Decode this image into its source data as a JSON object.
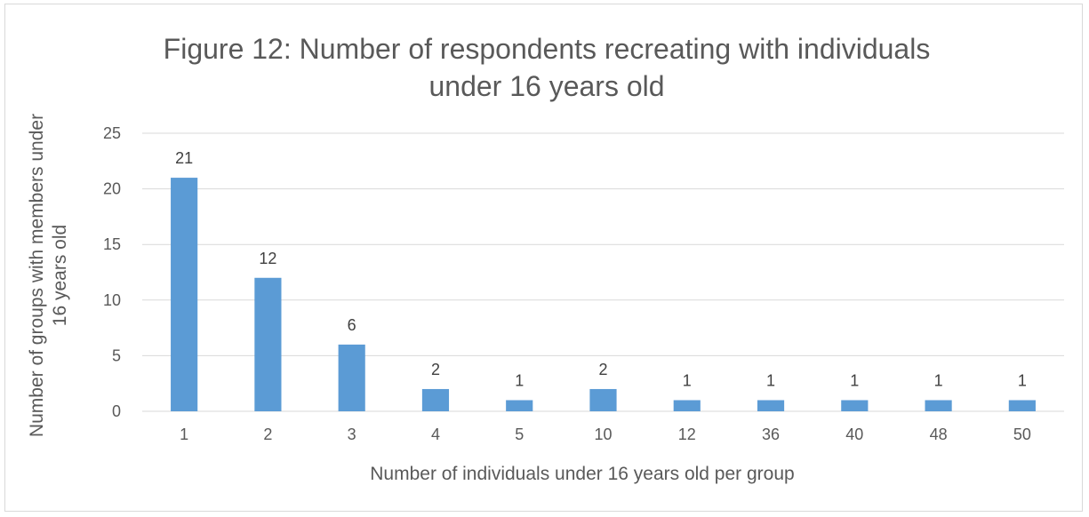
{
  "chart_data": {
    "type": "bar",
    "title_lines": [
      "Figure 12: Number of respondents recreating with individuals",
      "under 16 years old"
    ],
    "xlabel": "Number of individuals under 16 years old per group",
    "ylabel_lines": [
      "Number of groups with members under",
      "16 years old"
    ],
    "categories": [
      "1",
      "2",
      "3",
      "4",
      "5",
      "10",
      "12",
      "36",
      "40",
      "48",
      "50"
    ],
    "values": [
      21,
      12,
      6,
      2,
      1,
      2,
      1,
      1,
      1,
      1,
      1
    ],
    "data_labels": [
      "21",
      "12",
      "6",
      "2",
      "1",
      "2",
      "1",
      "1",
      "1",
      "1",
      "1"
    ],
    "ylim": [
      0,
      25
    ],
    "yticks": [
      0,
      5,
      10,
      15,
      20,
      25
    ],
    "grid": true,
    "legend": "none",
    "bar_color": "#5b9bd5"
  }
}
